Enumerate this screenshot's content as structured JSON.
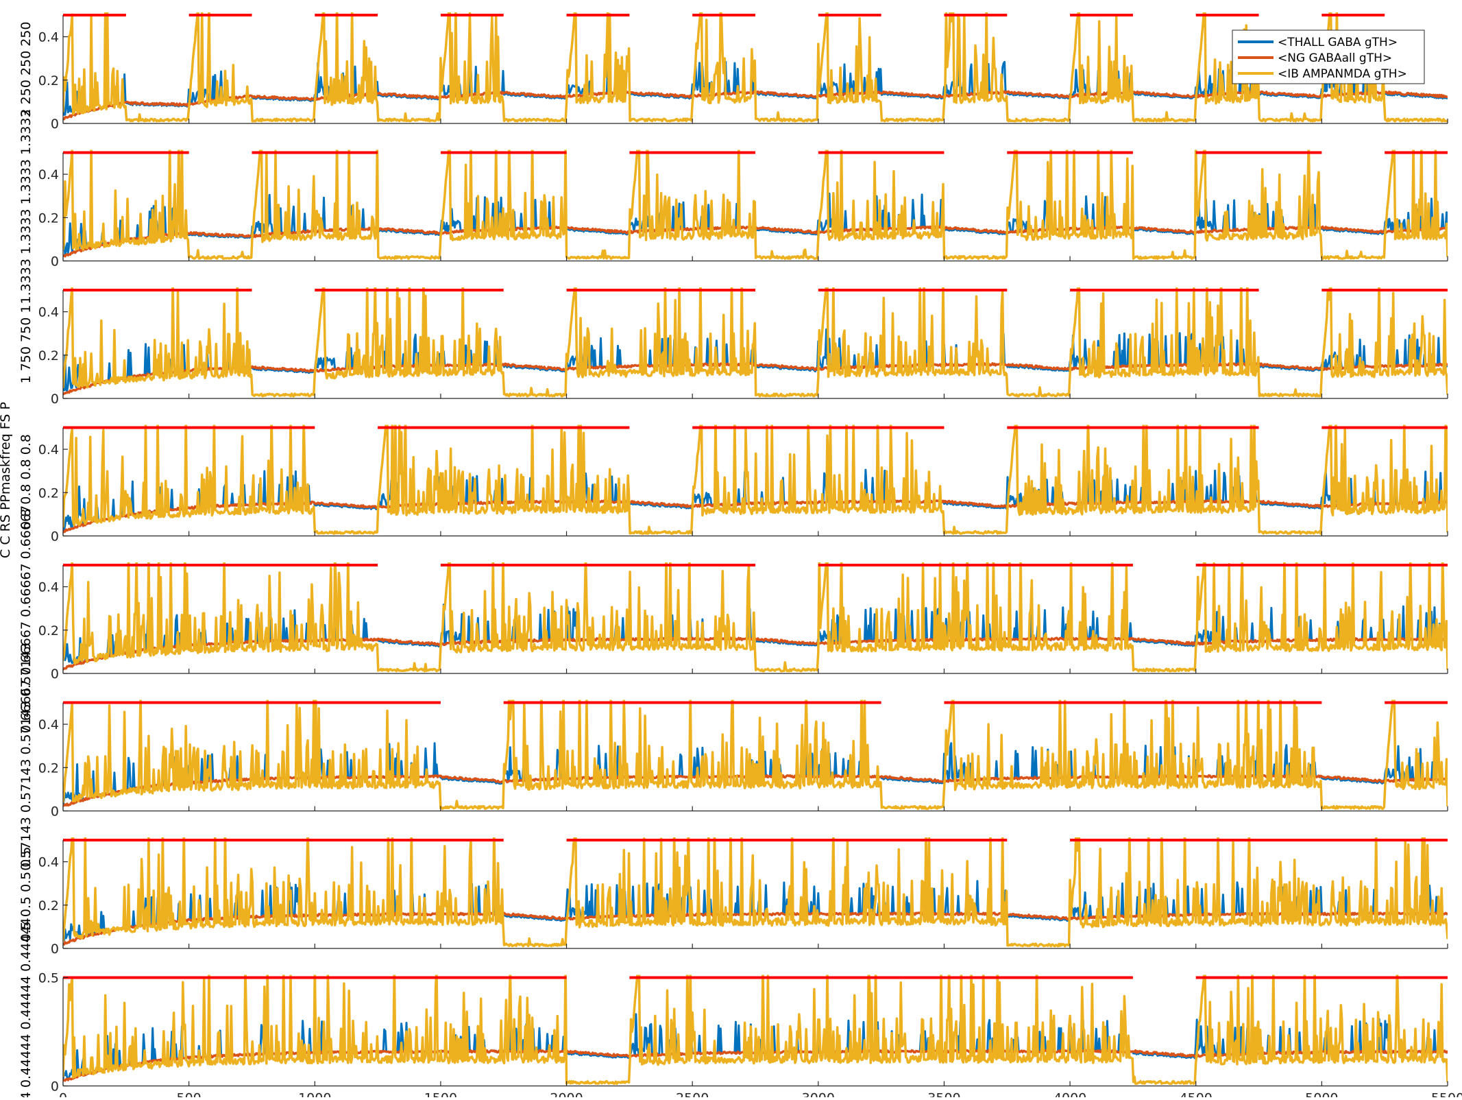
{
  "chart_data": {
    "type": "line",
    "figure_ylabel": "C C RS PPmaskfreq FS P",
    "xlim": [
      0,
      5500
    ],
    "x_ticks": [
      0,
      500,
      1000,
      1500,
      2000,
      2500,
      3000,
      3500,
      4000,
      4500,
      5000,
      5500
    ],
    "legend": {
      "placement": "top-right of first panel",
      "entries": [
        "<THALL GABA gTH>",
        "<NG GABAall gTH>",
        "<IB AMPANMDA gTH>"
      ]
    },
    "colors": {
      "thall_gaba": "#0072BD",
      "ng_gabaall": "#D95319",
      "ib_ampanmda": "#EDB120",
      "stim_marker": "#FF0000",
      "axis": "#262626"
    },
    "series_names": [
      "<THALL GABA gTH>",
      "<NG GABAall gTH>",
      "<IB AMPANMDA gTH>"
    ],
    "panels": [
      {
        "label": "2 250 250 250",
        "ylim": [
          0,
          0.5
        ],
        "y_ticks": [
          0,
          0.2,
          0.4
        ],
        "stim_on_ms": 250,
        "stim_off_ms": 250,
        "stim_segments": [
          [
            0,
            250
          ],
          [
            500,
            750
          ],
          [
            1000,
            1250
          ],
          [
            1500,
            1750
          ],
          [
            2000,
            2250
          ],
          [
            2500,
            2750
          ],
          [
            3000,
            3250
          ],
          [
            3500,
            3750
          ],
          [
            4000,
            4250
          ],
          [
            4500,
            4750
          ],
          [
            5000,
            5250
          ]
        ]
      },
      {
        "label": "1.3333 1.3333 1.3333 1.3333",
        "ylim": [
          0,
          0.5
        ],
        "y_ticks": [
          0,
          0.2,
          0.4
        ],
        "stim_on_ms": 500,
        "stim_off_ms": 250,
        "stim_segments": [
          [
            0,
            500
          ],
          [
            750,
            1250
          ],
          [
            1500,
            2000
          ],
          [
            2250,
            2750
          ],
          [
            3000,
            3500
          ],
          [
            3750,
            4250
          ],
          [
            4500,
            5000
          ],
          [
            5250,
            5500
          ]
        ]
      },
      {
        "label": "1 750 750 1",
        "ylim": [
          0,
          0.5
        ],
        "y_ticks": [
          0,
          0.2,
          0.4
        ],
        "stim_on_ms": 750,
        "stim_off_ms": 250,
        "stim_segments": [
          [
            0,
            750
          ],
          [
            1000,
            1750
          ],
          [
            2000,
            2750
          ],
          [
            3000,
            3750
          ],
          [
            4000,
            4750
          ],
          [
            5000,
            5500
          ]
        ]
      },
      {
        "label": "0.8 0.8 0.8 0.8",
        "ylim": [
          0,
          0.5
        ],
        "y_ticks": [
          0,
          0.2,
          0.4
        ],
        "stim_on_ms": 1000,
        "stim_off_ms": 250,
        "stim_segments": [
          [
            0,
            1000
          ],
          [
            1250,
            2250
          ],
          [
            2500,
            3500
          ],
          [
            3750,
            4750
          ],
          [
            5000,
            5500
          ]
        ]
      },
      {
        "label": "0.66667 0.66667 0.66667 0.66667",
        "ylim": [
          0,
          0.5
        ],
        "y_ticks": [
          0,
          0.2,
          0.4
        ],
        "stim_on_ms": 1250,
        "stim_off_ms": 250,
        "stim_segments": [
          [
            0,
            1250
          ],
          [
            1500,
            2750
          ],
          [
            3000,
            4250
          ],
          [
            4500,
            5500
          ]
        ]
      },
      {
        "label": "0.57143 0.57143 0.57143 0.57143",
        "ylim": [
          0,
          0.5
        ],
        "y_ticks": [
          0,
          0.2,
          0.4
        ],
        "stim_on_ms": 1500,
        "stim_off_ms": 250,
        "stim_segments": [
          [
            0,
            1500
          ],
          [
            1750,
            3250
          ],
          [
            3500,
            5000
          ],
          [
            5250,
            5500
          ]
        ]
      },
      {
        "label": "0.5 0.5 0.5 0.5",
        "ylim": [
          0,
          0.5
        ],
        "y_ticks": [
          0,
          0.2,
          0.4
        ],
        "stim_on_ms": 1750,
        "stim_off_ms": 250,
        "stim_segments": [
          [
            0,
            1750
          ],
          [
            2000,
            3750
          ],
          [
            4000,
            5500
          ]
        ]
      },
      {
        "label": "0.44444 0.44444 0.44444 0.44444",
        "ylim": [
          0,
          0.5
        ],
        "y_ticks": [
          0,
          0.5
        ],
        "stim_on_ms": 2000,
        "stim_off_ms": 250,
        "stim_segments": [
          [
            0,
            2000
          ],
          [
            2250,
            4250
          ],
          [
            4500,
            5500
          ]
        ]
      }
    ]
  }
}
